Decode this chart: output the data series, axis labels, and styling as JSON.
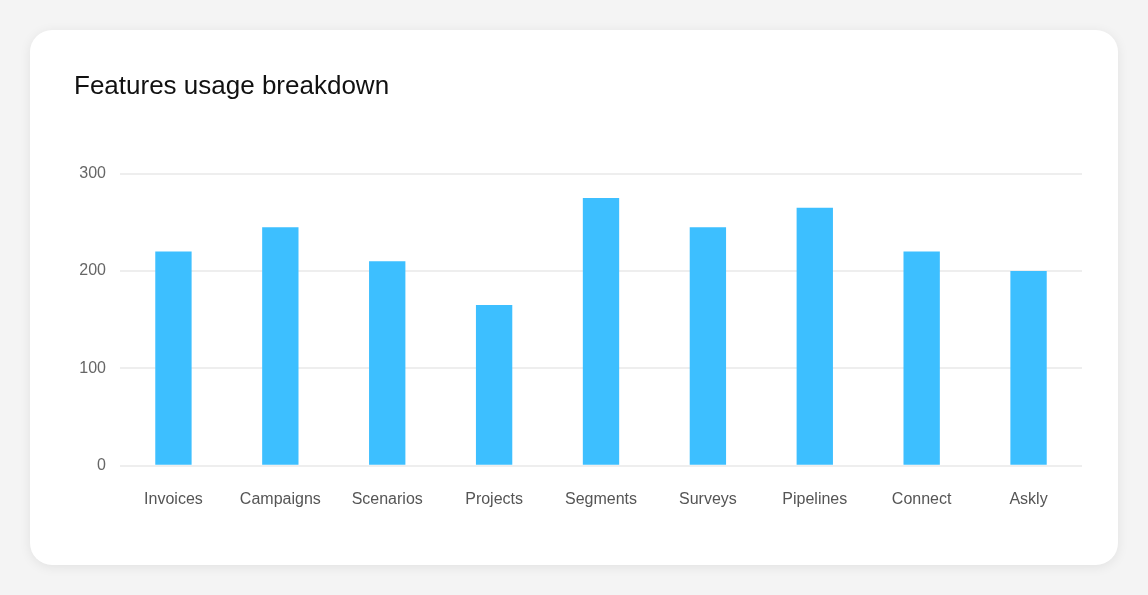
{
  "chart_data": {
    "type": "bar",
    "title": "Features usage breakdown",
    "categories": [
      "Invoices",
      "Campaigns",
      "Scenarios",
      "Projects",
      "Segments",
      "Surveys",
      "Pipelines",
      "Connect",
      "Askly"
    ],
    "values": [
      220,
      245,
      210,
      165,
      275,
      245,
      265,
      220,
      200
    ],
    "color": "#3dbfff",
    "ylim": [
      0,
      300
    ],
    "yticks": [
      0,
      100,
      200,
      300
    ],
    "grid": "y",
    "legend": false
  }
}
